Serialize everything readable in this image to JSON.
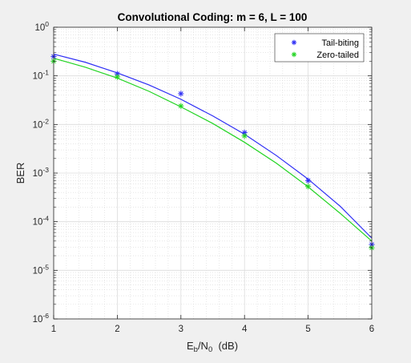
{
  "chart_data": {
    "type": "line",
    "title": "Convolutional Coding: m = 6, L = 100",
    "xlabel": {
      "base": "E",
      "sub1": "b",
      "mid": "/N",
      "sub2": "0",
      "suffix": "  (dB)"
    },
    "ylabel": "BER",
    "xlim": [
      1,
      6
    ],
    "ylim_exp": [
      -6,
      0
    ],
    "yscale": "log",
    "grid": true,
    "minor_grid": true,
    "legend_position": "top-right",
    "x_ticks": [
      "1",
      "2",
      "3",
      "4",
      "5",
      "6"
    ],
    "y_ticks": [
      {
        "base": "10",
        "exp": "0"
      },
      {
        "base": "10",
        "exp": "-1"
      },
      {
        "base": "10",
        "exp": "-2"
      },
      {
        "base": "10",
        "exp": "-3"
      },
      {
        "base": "10",
        "exp": "-4"
      },
      {
        "base": "10",
        "exp": "-5"
      },
      {
        "base": "10",
        "exp": "-6"
      }
    ],
    "series": [
      {
        "name": "Tail-biting",
        "color": "#2d2df5",
        "marker": "asterisk",
        "points": {
          "x": [
            1,
            2,
            3,
            4,
            5,
            6
          ],
          "y": [
            0.25,
            0.11,
            0.043,
            0.0068,
            0.0007,
            3.4e-05
          ]
        },
        "fit": {
          "x": [
            1,
            1.5,
            2,
            2.5,
            3,
            3.5,
            4,
            4.5,
            5,
            5.5,
            6
          ],
          "y": [
            0.28,
            0.19,
            0.115,
            0.065,
            0.033,
            0.015,
            0.0063,
            0.0023,
            0.00075,
            0.00021,
            4.6e-05
          ]
        }
      },
      {
        "name": "Zero-tailed",
        "color": "#22d422",
        "marker": "asterisk",
        "points": {
          "x": [
            1,
            2,
            3,
            4,
            5,
            6
          ],
          "y": [
            0.2,
            0.095,
            0.024,
            0.0058,
            0.00053,
            2.9e-05
          ]
        },
        "fit": {
          "x": [
            1,
            1.5,
            2,
            2.5,
            3,
            3.5,
            4,
            4.5,
            5,
            5.5,
            6
          ],
          "y": [
            0.23,
            0.15,
            0.09,
            0.048,
            0.023,
            0.0105,
            0.0043,
            0.0016,
            0.00052,
            0.00015,
            4e-05
          ]
        }
      }
    ]
  }
}
